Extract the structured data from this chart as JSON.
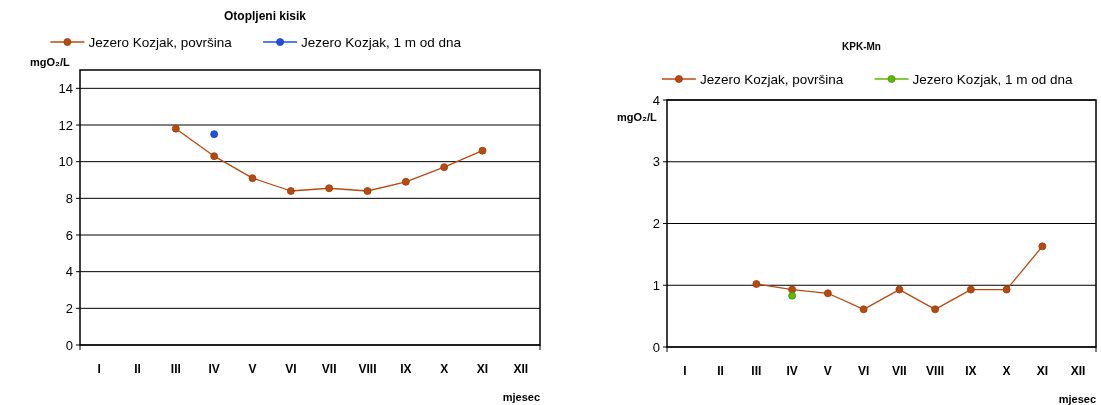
{
  "chart_data": [
    {
      "type": "line",
      "title": "Otopljeni kisik",
      "xlabel": "mjesec",
      "ylabel": "mgO₂/L",
      "categories": [
        "I",
        "II",
        "III",
        "IV",
        "V",
        "VI",
        "VII",
        "VIII",
        "IX",
        "X",
        "XI",
        "XII"
      ],
      "series": [
        {
          "name": "Jezero Kozjak, površina",
          "color": "#b84a10",
          "values": [
            null,
            null,
            11.8,
            10.3,
            9.1,
            8.4,
            8.55,
            8.4,
            8.9,
            9.7,
            10.6,
            null
          ]
        },
        {
          "name": "Jezero Kozjak, 1 m od dna",
          "color": "#1f4fe0",
          "values": [
            null,
            null,
            null,
            11.5,
            null,
            null,
            null,
            null,
            null,
            null,
            null,
            null
          ]
        }
      ],
      "ylim": [
        0,
        15
      ],
      "yticks": [
        0,
        2,
        4,
        6,
        8,
        10,
        12,
        14
      ],
      "grid": "y",
      "legend": "top",
      "marker": "circle",
      "line_style": "solid"
    },
    {
      "type": "line",
      "title": "KPK-Mn",
      "xlabel": "mjesec",
      "ylabel": "mgO₂/L",
      "categories": [
        "I",
        "II",
        "III",
        "IV",
        "V",
        "VI",
        "VII",
        "VIII",
        "IX",
        "X",
        "XI",
        "XII"
      ],
      "series": [
        {
          "name": "Jezero Kozjak, površina",
          "color": "#b84a10",
          "values": [
            null,
            null,
            1.02,
            0.93,
            0.87,
            0.61,
            0.93,
            0.61,
            0.93,
            0.93,
            1.63,
            null
          ]
        },
        {
          "name": "Jezero Kozjak, 1 m od dna",
          "color": "#5cb800",
          "values": [
            null,
            null,
            null,
            0.83,
            null,
            null,
            null,
            null,
            null,
            null,
            null,
            null
          ]
        }
      ],
      "ylim": [
        0,
        4
      ],
      "yticks": [
        0,
        1,
        2,
        3,
        4
      ],
      "grid": "y",
      "legend": "top",
      "marker": "circle",
      "line_style": "solid"
    }
  ]
}
